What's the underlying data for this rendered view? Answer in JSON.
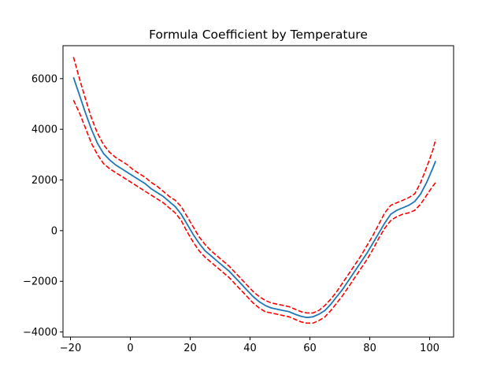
{
  "chart_data": {
    "type": "line",
    "title": "Formula Coefficient by Temperature",
    "xlabel": "",
    "ylabel": "",
    "xlim": [
      -22.5,
      108
    ],
    "ylim": [
      -4200,
      7300
    ],
    "xticks": [
      -20,
      0,
      20,
      40,
      60,
      80,
      100
    ],
    "yticks": [
      -4000,
      -2000,
      0,
      2000,
      4000,
      6000
    ],
    "grid": false,
    "legend": "none",
    "x": [
      -19,
      -17,
      -15,
      -13,
      -11,
      -9,
      -7,
      -5,
      -3,
      -1,
      1,
      3,
      5,
      7,
      9,
      11,
      13,
      15,
      17,
      19,
      21,
      23,
      25,
      27,
      29,
      31,
      33,
      35,
      37,
      39,
      41,
      43,
      45,
      47,
      49,
      51,
      53,
      55,
      57,
      59,
      61,
      63,
      65,
      67,
      69,
      71,
      73,
      75,
      77,
      79,
      81,
      83,
      85,
      87,
      89,
      91,
      93,
      95,
      97,
      99,
      101,
      102
    ],
    "series": [
      {
        "color": "#1f77b4",
        "style": "solid",
        "values": [
          6050,
          5350,
          4650,
          4000,
          3450,
          3050,
          2800,
          2600,
          2450,
          2300,
          2150,
          2000,
          1850,
          1650,
          1500,
          1350,
          1150,
          950,
          650,
          250,
          -150,
          -500,
          -800,
          -1000,
          -1200,
          -1400,
          -1600,
          -1850,
          -2100,
          -2350,
          -2600,
          -2800,
          -2950,
          -3050,
          -3100,
          -3150,
          -3200,
          -3300,
          -3380,
          -3430,
          -3400,
          -3300,
          -3150,
          -2900,
          -2600,
          -2300,
          -1950,
          -1600,
          -1250,
          -900,
          -500,
          -100,
          300,
          650,
          800,
          900,
          1000,
          1150,
          1450,
          1900,
          2450,
          2750
        ]
      },
      {
        "color": "#ff0000",
        "style": "dashed",
        "values": [
          6850,
          6000,
          5200,
          4450,
          3850,
          3400,
          3100,
          2900,
          2750,
          2600,
          2400,
          2250,
          2100,
          1900,
          1750,
          1550,
          1350,
          1200,
          950,
          550,
          150,
          -250,
          -550,
          -800,
          -1000,
          -1200,
          -1400,
          -1650,
          -1900,
          -2150,
          -2400,
          -2600,
          -2750,
          -2850,
          -2900,
          -2950,
          -3000,
          -3100,
          -3200,
          -3250,
          -3250,
          -3150,
          -2950,
          -2700,
          -2400,
          -2050,
          -1700,
          -1350,
          -1000,
          -600,
          -200,
          250,
          700,
          1000,
          1100,
          1200,
          1300,
          1450,
          1900,
          2500,
          3150,
          3600
        ]
      },
      {
        "color": "#ff0000",
        "style": "dashed",
        "values": [
          5150,
          4650,
          4050,
          3450,
          3000,
          2650,
          2450,
          2300,
          2150,
          2000,
          1850,
          1700,
          1550,
          1400,
          1250,
          1100,
          900,
          700,
          400,
          -50,
          -450,
          -800,
          -1050,
          -1250,
          -1450,
          -1650,
          -1850,
          -2100,
          -2350,
          -2600,
          -2850,
          -3050,
          -3200,
          -3250,
          -3300,
          -3350,
          -3400,
          -3500,
          -3600,
          -3650,
          -3650,
          -3550,
          -3400,
          -3150,
          -2850,
          -2550,
          -2200,
          -1850,
          -1500,
          -1150,
          -750,
          -300,
          100,
          400,
          550,
          650,
          700,
          800,
          1050,
          1400,
          1750,
          1900
        ]
      }
    ]
  }
}
